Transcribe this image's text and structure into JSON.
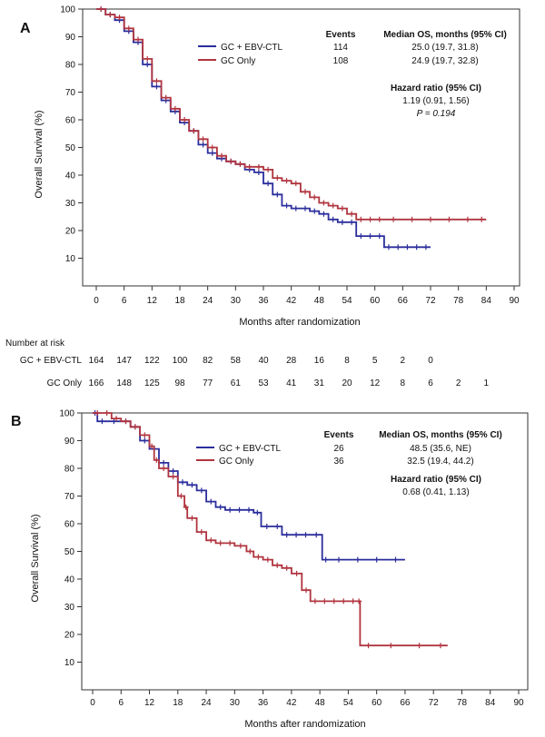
{
  "chart_data": [
    {
      "panel": "A",
      "type": "line",
      "subtype": "kaplan-meier",
      "xlabel": "Months after randomization",
      "ylabel": "Overall Survival (%)",
      "xlim": [
        0,
        90
      ],
      "ylim": [
        0,
        100
      ],
      "xticks": [
        0,
        6,
        12,
        18,
        24,
        30,
        36,
        42,
        48,
        54,
        60,
        66,
        72,
        78,
        84,
        90
      ],
      "yticks": [
        10,
        20,
        30,
        40,
        50,
        60,
        70,
        80,
        90,
        100
      ],
      "legend_position": "top-right",
      "headers": {
        "events": "Events",
        "median": "Median OS, months (95% CI)"
      },
      "series": [
        {
          "name": "GC + EBV-CTL",
          "color": "#2b2e9c",
          "events": "114",
          "median": "25.0 (19.7, 31.8)",
          "x": [
            0,
            2,
            4,
            6,
            8,
            10,
            12,
            14,
            16,
            18,
            20,
            22,
            24,
            26,
            28,
            30,
            32,
            34,
            36,
            38,
            40,
            42,
            44,
            46,
            48,
            50,
            52,
            54,
            56,
            58,
            60,
            62,
            64,
            66,
            68,
            70,
            72
          ],
          "y": [
            100,
            98,
            96,
            92,
            88,
            80,
            72,
            67,
            63,
            59,
            56,
            51,
            48,
            46,
            45,
            44,
            42,
            41,
            37,
            33,
            29,
            28,
            28,
            27,
            26,
            24,
            23,
            23,
            18,
            18,
            18,
            14,
            14,
            14,
            14,
            14,
            14
          ]
        },
        {
          "name": "GC Only",
          "color": "#b0343f",
          "events": "108",
          "median": "24.9 (19.7, 32.8)",
          "x": [
            0,
            2,
            4,
            6,
            8,
            10,
            12,
            14,
            16,
            18,
            20,
            22,
            24,
            26,
            28,
            30,
            32,
            34,
            36,
            38,
            40,
            42,
            44,
            46,
            48,
            50,
            52,
            54,
            56,
            58,
            60,
            62,
            66,
            70,
            74,
            78,
            82,
            84
          ],
          "y": [
            100,
            98,
            97,
            93,
            89,
            82,
            74,
            68,
            64,
            60,
            56,
            53,
            50,
            47,
            45,
            44,
            43,
            43,
            42,
            39,
            38,
            37,
            34,
            32,
            30,
            29,
            28,
            26,
            24,
            24,
            24,
            24,
            24,
            24,
            24,
            24,
            24,
            24
          ]
        }
      ],
      "hazard": {
        "title": "Hazard ratio (95% CI)",
        "value": "1.19 (0.91, 1.56)",
        "p": "P = 0.194"
      },
      "risk_table": {
        "title": "Number at risk",
        "rows": [
          {
            "label": "GC + EBV-CTL",
            "values": [
              "164",
              "147",
              "122",
              "100",
              "82",
              "58",
              "40",
              "28",
              "16",
              "8",
              "5",
              "2",
              "0"
            ]
          },
          {
            "label": "GC Only",
            "values": [
              "166",
              "148",
              "125",
              "98",
              "77",
              "61",
              "53",
              "41",
              "31",
              "20",
              "12",
              "8",
              "6",
              "2",
              "1"
            ]
          }
        ]
      }
    },
    {
      "panel": "B",
      "type": "line",
      "subtype": "kaplan-meier",
      "xlabel": "Months after randomization",
      "ylabel": "Overall Survival (%)",
      "xlim": [
        0,
        90
      ],
      "ylim": [
        0,
        100
      ],
      "xticks": [
        0,
        6,
        12,
        18,
        24,
        30,
        36,
        42,
        48,
        54,
        60,
        66,
        72,
        78,
        84,
        90
      ],
      "yticks": [
        10,
        20,
        30,
        40,
        50,
        60,
        70,
        80,
        90,
        100
      ],
      "legend_position": "top-right",
      "headers": {
        "events": "Events",
        "median": "Median OS, months (95% CI)"
      },
      "series": [
        {
          "name": "GC + EBV-CTL",
          "color": "#2b2e9c",
          "events": "26",
          "median": "48.5 (35.6, NE)",
          "x": [
            0,
            1,
            3,
            6,
            8,
            10,
            12,
            14,
            16,
            18,
            20,
            22,
            24,
            26,
            28,
            30,
            32,
            34,
            35.6,
            38,
            40,
            42,
            44,
            46,
            48.5,
            50,
            54,
            58,
            62,
            66
          ],
          "y": [
            100,
            97,
            97,
            97,
            95,
            90,
            87,
            82,
            79,
            75,
            74,
            72,
            68,
            66,
            65,
            65,
            65,
            64,
            59,
            59,
            56,
            56,
            56,
            56,
            47,
            47,
            47,
            47,
            47,
            47
          ]
        },
        {
          "name": "GC Only",
          "color": "#b0343f",
          "events": "36",
          "median": "32.5 (19.4, 44.2)",
          "x": [
            0,
            2,
            4,
            6,
            8,
            10,
            12,
            13,
            14,
            16,
            18,
            19.4,
            20,
            22,
            24,
            26,
            28,
            30,
            32.5,
            34,
            36,
            38,
            40,
            42,
            44.2,
            46,
            48,
            50,
            52,
            54,
            56,
            56.5,
            60,
            66,
            72,
            75
          ],
          "y": [
            100,
            100,
            98,
            97,
            95,
            92,
            88,
            83,
            80,
            77,
            70,
            66,
            62,
            57,
            54,
            53,
            53,
            52,
            50,
            48,
            47,
            45,
            44,
            42,
            36,
            32,
            32,
            32,
            32,
            32,
            32,
            16,
            16,
            16,
            16,
            16
          ]
        }
      ],
      "hazard": {
        "title": "Hazard ratio (95% CI)",
        "value": "0.68 (0.41, 1.13)"
      }
    }
  ]
}
